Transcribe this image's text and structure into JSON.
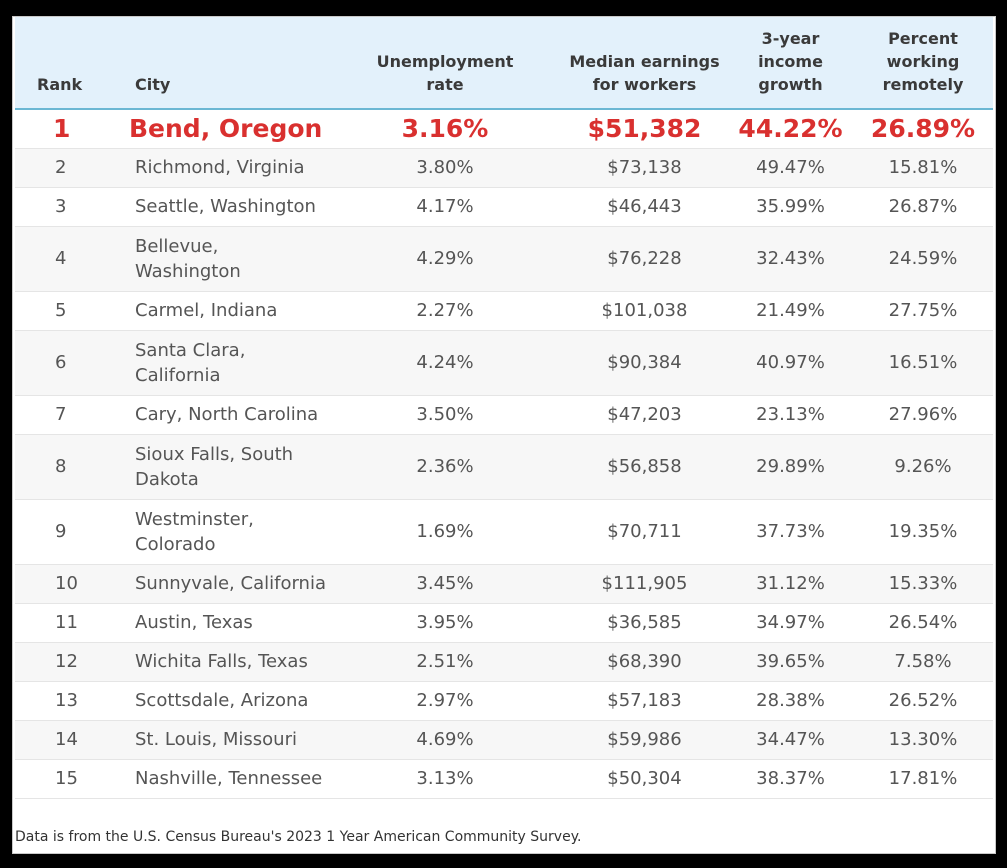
{
  "footnote": "Data is from the U.S. Census Bureau's 2023 1 Year American Community Survey.",
  "chart_data": {
    "type": "table",
    "columns": [
      "Rank",
      "City",
      "Unemployment rate",
      "Median earnings for workers",
      "3-year income growth",
      "Percent working remotely"
    ],
    "header_lines": [
      [
        "Rank"
      ],
      [
        "City"
      ],
      [
        "Unemployment",
        "rate"
      ],
      [
        "Median earnings",
        "for workers"
      ],
      [
        "3-year",
        "income",
        "growth"
      ],
      [
        "Percent",
        "working",
        "remotely"
      ]
    ],
    "rows": [
      {
        "rank": "1",
        "city": [
          "Bend, Oregon"
        ],
        "unemployment": "3.16%",
        "earnings": "$51,382",
        "growth": "44.22%",
        "remote": "26.89%"
      },
      {
        "rank": "2",
        "city": [
          "Richmond, Virginia"
        ],
        "unemployment": "3.80%",
        "earnings": "$73,138",
        "growth": "49.47%",
        "remote": "15.81%"
      },
      {
        "rank": "3",
        "city": [
          "Seattle, Washington"
        ],
        "unemployment": "4.17%",
        "earnings": "$46,443",
        "growth": "35.99%",
        "remote": "26.87%"
      },
      {
        "rank": "4",
        "city": [
          "Bellevue,",
          "Washington"
        ],
        "unemployment": "4.29%",
        "earnings": "$76,228",
        "growth": "32.43%",
        "remote": "24.59%"
      },
      {
        "rank": "5",
        "city": [
          "Carmel, Indiana"
        ],
        "unemployment": "2.27%",
        "earnings": "$101,038",
        "growth": "21.49%",
        "remote": "27.75%"
      },
      {
        "rank": "6",
        "city": [
          "Santa Clara,",
          "California"
        ],
        "unemployment": "4.24%",
        "earnings": "$90,384",
        "growth": "40.97%",
        "remote": "16.51%"
      },
      {
        "rank": "7",
        "city": [
          "Cary, North Carolina"
        ],
        "unemployment": "3.50%",
        "earnings": "$47,203",
        "growth": "23.13%",
        "remote": "27.96%"
      },
      {
        "rank": "8",
        "city": [
          "Sioux Falls, South",
          "Dakota"
        ],
        "unemployment": "2.36%",
        "earnings": "$56,858",
        "growth": "29.89%",
        "remote": "9.26%"
      },
      {
        "rank": "9",
        "city": [
          "Westminster,",
          "Colorado"
        ],
        "unemployment": "1.69%",
        "earnings": "$70,711",
        "growth": "37.73%",
        "remote": "19.35%"
      },
      {
        "rank": "10",
        "city": [
          "Sunnyvale, California"
        ],
        "unemployment": "3.45%",
        "earnings": "$111,905",
        "growth": "31.12%",
        "remote": "15.33%"
      },
      {
        "rank": "11",
        "city": [
          "Austin, Texas"
        ],
        "unemployment": "3.95%",
        "earnings": "$36,585",
        "growth": "34.97%",
        "remote": "26.54%"
      },
      {
        "rank": "12",
        "city": [
          "Wichita Falls, Texas"
        ],
        "unemployment": "2.51%",
        "earnings": "$68,390",
        "growth": "39.65%",
        "remote": "7.58%"
      },
      {
        "rank": "13",
        "city": [
          "Scottsdale, Arizona"
        ],
        "unemployment": "2.97%",
        "earnings": "$57,183",
        "growth": "28.38%",
        "remote": "26.52%"
      },
      {
        "rank": "14",
        "city": [
          "St. Louis, Missouri"
        ],
        "unemployment": "4.69%",
        "earnings": "$59,986",
        "growth": "34.47%",
        "remote": "13.30%"
      },
      {
        "rank": "15",
        "city": [
          "Nashville, Tennessee"
        ],
        "unemployment": "3.13%",
        "earnings": "$50,304",
        "growth": "38.37%",
        "remote": "17.81%"
      }
    ],
    "colors": {
      "highlight": "#d9302f",
      "header_bg": "#e3f1fb",
      "header_rule": "#6bb7d3"
    }
  }
}
